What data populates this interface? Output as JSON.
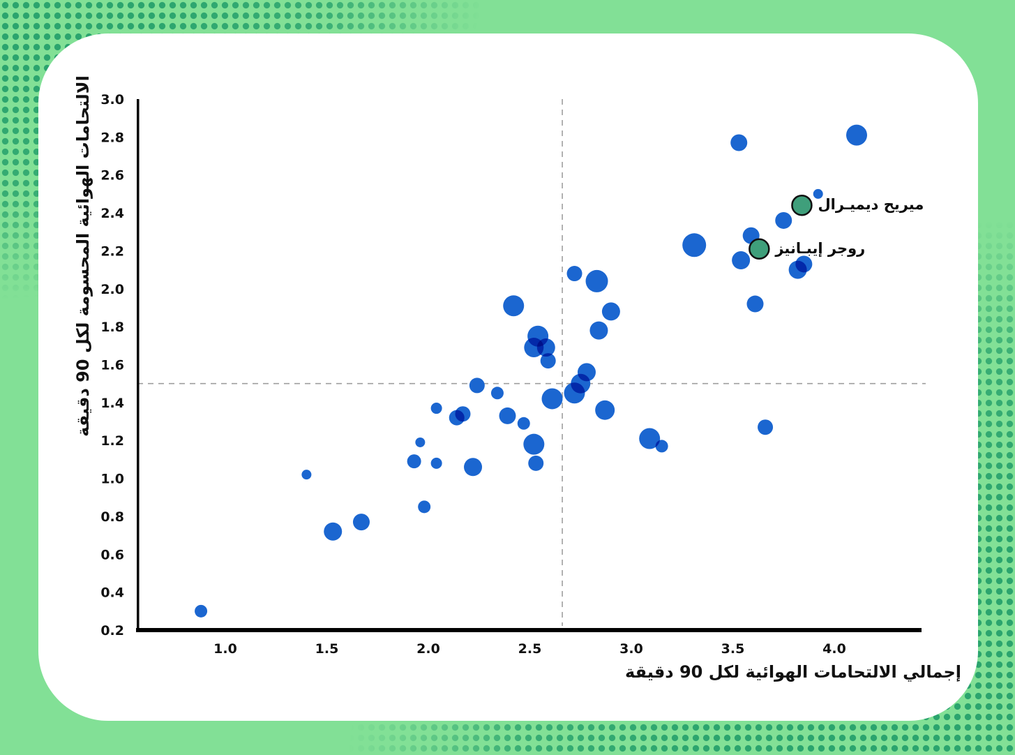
{
  "page": {
    "background_color": "#82e096",
    "halftone_dot_color": "#2ba46e",
    "card_color": "#ffffff"
  },
  "chart_data": {
    "type": "scatter",
    "subtype": "bubble",
    "title": "",
    "xlabel": "إجمالي الالتحامات الهوائية لكل 90 دقيقة",
    "ylabel": "الالتحامات الهوائية المحسومة لكل 90 دقيقة",
    "xlim": [
      0.56,
      4.43
    ],
    "ylim": [
      0.2,
      3.0
    ],
    "grid": false,
    "x_ticks": [
      1.0,
      1.5,
      2.0,
      2.5,
      3.0,
      3.5,
      4.0
    ],
    "x_tick_labels": [
      "1.0",
      "1.5",
      "2.0",
      "2.5",
      "3.0",
      "3.5",
      "4.0"
    ],
    "y_ticks": [
      0.2,
      0.4,
      0.6,
      0.8,
      1.0,
      1.2,
      1.4,
      1.6,
      1.8,
      2.0,
      2.2,
      2.4,
      2.6,
      2.8,
      3.0
    ],
    "y_tick_labels": [
      "0.2",
      "0.4",
      "0.6",
      "0.8",
      "1.0",
      "1.2",
      "1.4",
      "1.6",
      "1.8",
      "2.0",
      "2.2",
      "2.4",
      "2.6",
      "2.8",
      "3.0"
    ],
    "reference_lines": {
      "x": 2.66,
      "y": 1.5,
      "color": "#9e9e9e",
      "style": "dashed"
    },
    "point_color": "#1b66d0",
    "highlight_color": "#3f9f7b",
    "highlight_border_color": "#111111",
    "axis_color": "#000000",
    "points": [
      {
        "x": 0.88,
        "y": 0.3,
        "r": 9
      },
      {
        "x": 1.4,
        "y": 1.02,
        "r": 7
      },
      {
        "x": 1.53,
        "y": 0.72,
        "r": 13
      },
      {
        "x": 1.67,
        "y": 0.77,
        "r": 12
      },
      {
        "x": 1.93,
        "y": 1.09,
        "r": 10
      },
      {
        "x": 1.96,
        "y": 1.19,
        "r": 7
      },
      {
        "x": 1.98,
        "y": 0.85,
        "r": 9
      },
      {
        "x": 2.04,
        "y": 1.37,
        "r": 8
      },
      {
        "x": 2.04,
        "y": 1.08,
        "r": 8
      },
      {
        "x": 2.14,
        "y": 1.32,
        "r": 11
      },
      {
        "x": 2.17,
        "y": 1.34,
        "r": 11
      },
      {
        "x": 2.22,
        "y": 1.06,
        "r": 13
      },
      {
        "x": 2.24,
        "y": 1.49,
        "r": 11
      },
      {
        "x": 2.34,
        "y": 1.45,
        "r": 9
      },
      {
        "x": 2.39,
        "y": 1.33,
        "r": 12
      },
      {
        "x": 2.42,
        "y": 1.91,
        "r": 15
      },
      {
        "x": 2.47,
        "y": 1.29,
        "r": 9
      },
      {
        "x": 2.52,
        "y": 1.18,
        "r": 15
      },
      {
        "x": 2.53,
        "y": 1.08,
        "r": 11
      },
      {
        "x": 2.54,
        "y": 1.75,
        "r": 15
      },
      {
        "x": 2.52,
        "y": 1.69,
        "r": 14
      },
      {
        "x": 2.58,
        "y": 1.69,
        "r": 13
      },
      {
        "x": 2.59,
        "y": 1.62,
        "r": 11
      },
      {
        "x": 2.61,
        "y": 1.42,
        "r": 15
      },
      {
        "x": 2.72,
        "y": 2.08,
        "r": 11
      },
      {
        "x": 2.72,
        "y": 1.45,
        "r": 15
      },
      {
        "x": 2.78,
        "y": 1.56,
        "r": 13
      },
      {
        "x": 2.75,
        "y": 1.5,
        "r": 14
      },
      {
        "x": 2.83,
        "y": 2.04,
        "r": 16
      },
      {
        "x": 2.84,
        "y": 1.78,
        "r": 13
      },
      {
        "x": 2.87,
        "y": 1.36,
        "r": 14
      },
      {
        "x": 2.9,
        "y": 1.88,
        "r": 13
      },
      {
        "x": 3.09,
        "y": 1.21,
        "r": 15
      },
      {
        "x": 3.15,
        "y": 1.17,
        "r": 9
      },
      {
        "x": 3.31,
        "y": 2.23,
        "r": 17
      },
      {
        "x": 3.53,
        "y": 2.77,
        "r": 12
      },
      {
        "x": 3.54,
        "y": 2.15,
        "r": 13
      },
      {
        "x": 3.59,
        "y": 2.28,
        "r": 12
      },
      {
        "x": 3.61,
        "y": 1.92,
        "r": 12
      },
      {
        "x": 3.66,
        "y": 1.27,
        "r": 11
      },
      {
        "x": 3.75,
        "y": 2.36,
        "r": 12
      },
      {
        "x": 3.82,
        "y": 2.1,
        "r": 13
      },
      {
        "x": 3.85,
        "y": 2.13,
        "r": 12
      },
      {
        "x": 3.92,
        "y": 2.5,
        "r": 7
      },
      {
        "x": 4.11,
        "y": 2.81,
        "r": 15
      }
    ],
    "highlighted_players": [
      {
        "name": "ميريح ديميـرال",
        "x": 3.84,
        "y": 2.44,
        "r": 14
      },
      {
        "name": "روجر إيبـانيز",
        "x": 3.63,
        "y": 2.21,
        "r": 14
      }
    ],
    "legend_position": "none"
  }
}
